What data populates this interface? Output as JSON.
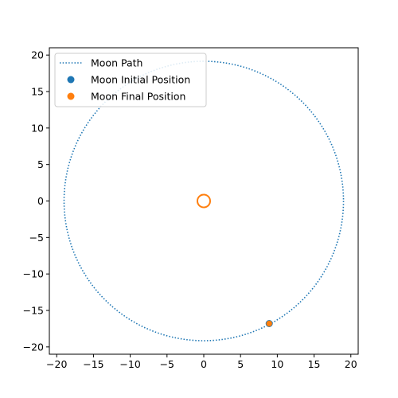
{
  "chart_data": {
    "type": "scatter",
    "title": "",
    "xlabel": "",
    "ylabel": "",
    "xlim": [
      -21,
      21
    ],
    "ylim": [
      -21,
      21
    ],
    "x_ticks": [
      -20,
      -15,
      -10,
      -5,
      0,
      5,
      10,
      15,
      20
    ],
    "y_ticks": [
      -20,
      -15,
      -10,
      -5,
      0,
      5,
      10,
      15,
      20
    ],
    "x_tick_labels": [
      "−20",
      "−15",
      "−10",
      "−5",
      "0",
      "5",
      "10",
      "15",
      "20"
    ],
    "y_tick_labels": [
      "−20",
      "−15",
      "−10",
      "−5",
      "0",
      "5",
      "10",
      "15",
      "20"
    ],
    "grid": false,
    "legend_position": "upper-left",
    "legend": [
      {
        "label": "Moon Path",
        "color": "#1f77b4",
        "marker": "dotted-line"
      },
      {
        "label": "Moon Initial Position",
        "color": "#1f77b4",
        "marker": "dot"
      },
      {
        "label": "Moon Final Position",
        "color": "#ff7f0e",
        "marker": "dot"
      }
    ],
    "series": [
      {
        "name": "Moon Path",
        "kind": "dotted-line",
        "color": "#1f77b4",
        "center": [
          0,
          0
        ],
        "radius": 19
      },
      {
        "name": "Moon Initial Position",
        "kind": "point",
        "color": "#1f77b4",
        "x": 8.9,
        "y": -16.8
      },
      {
        "name": "Moon Final Position",
        "kind": "point",
        "color": "#ff7f0e",
        "x": 8.9,
        "y": -16.8
      },
      {
        "name": "",
        "kind": "hollow-circle-marker",
        "color": "#ff7f0e",
        "x": 0,
        "y": 0
      }
    ]
  }
}
